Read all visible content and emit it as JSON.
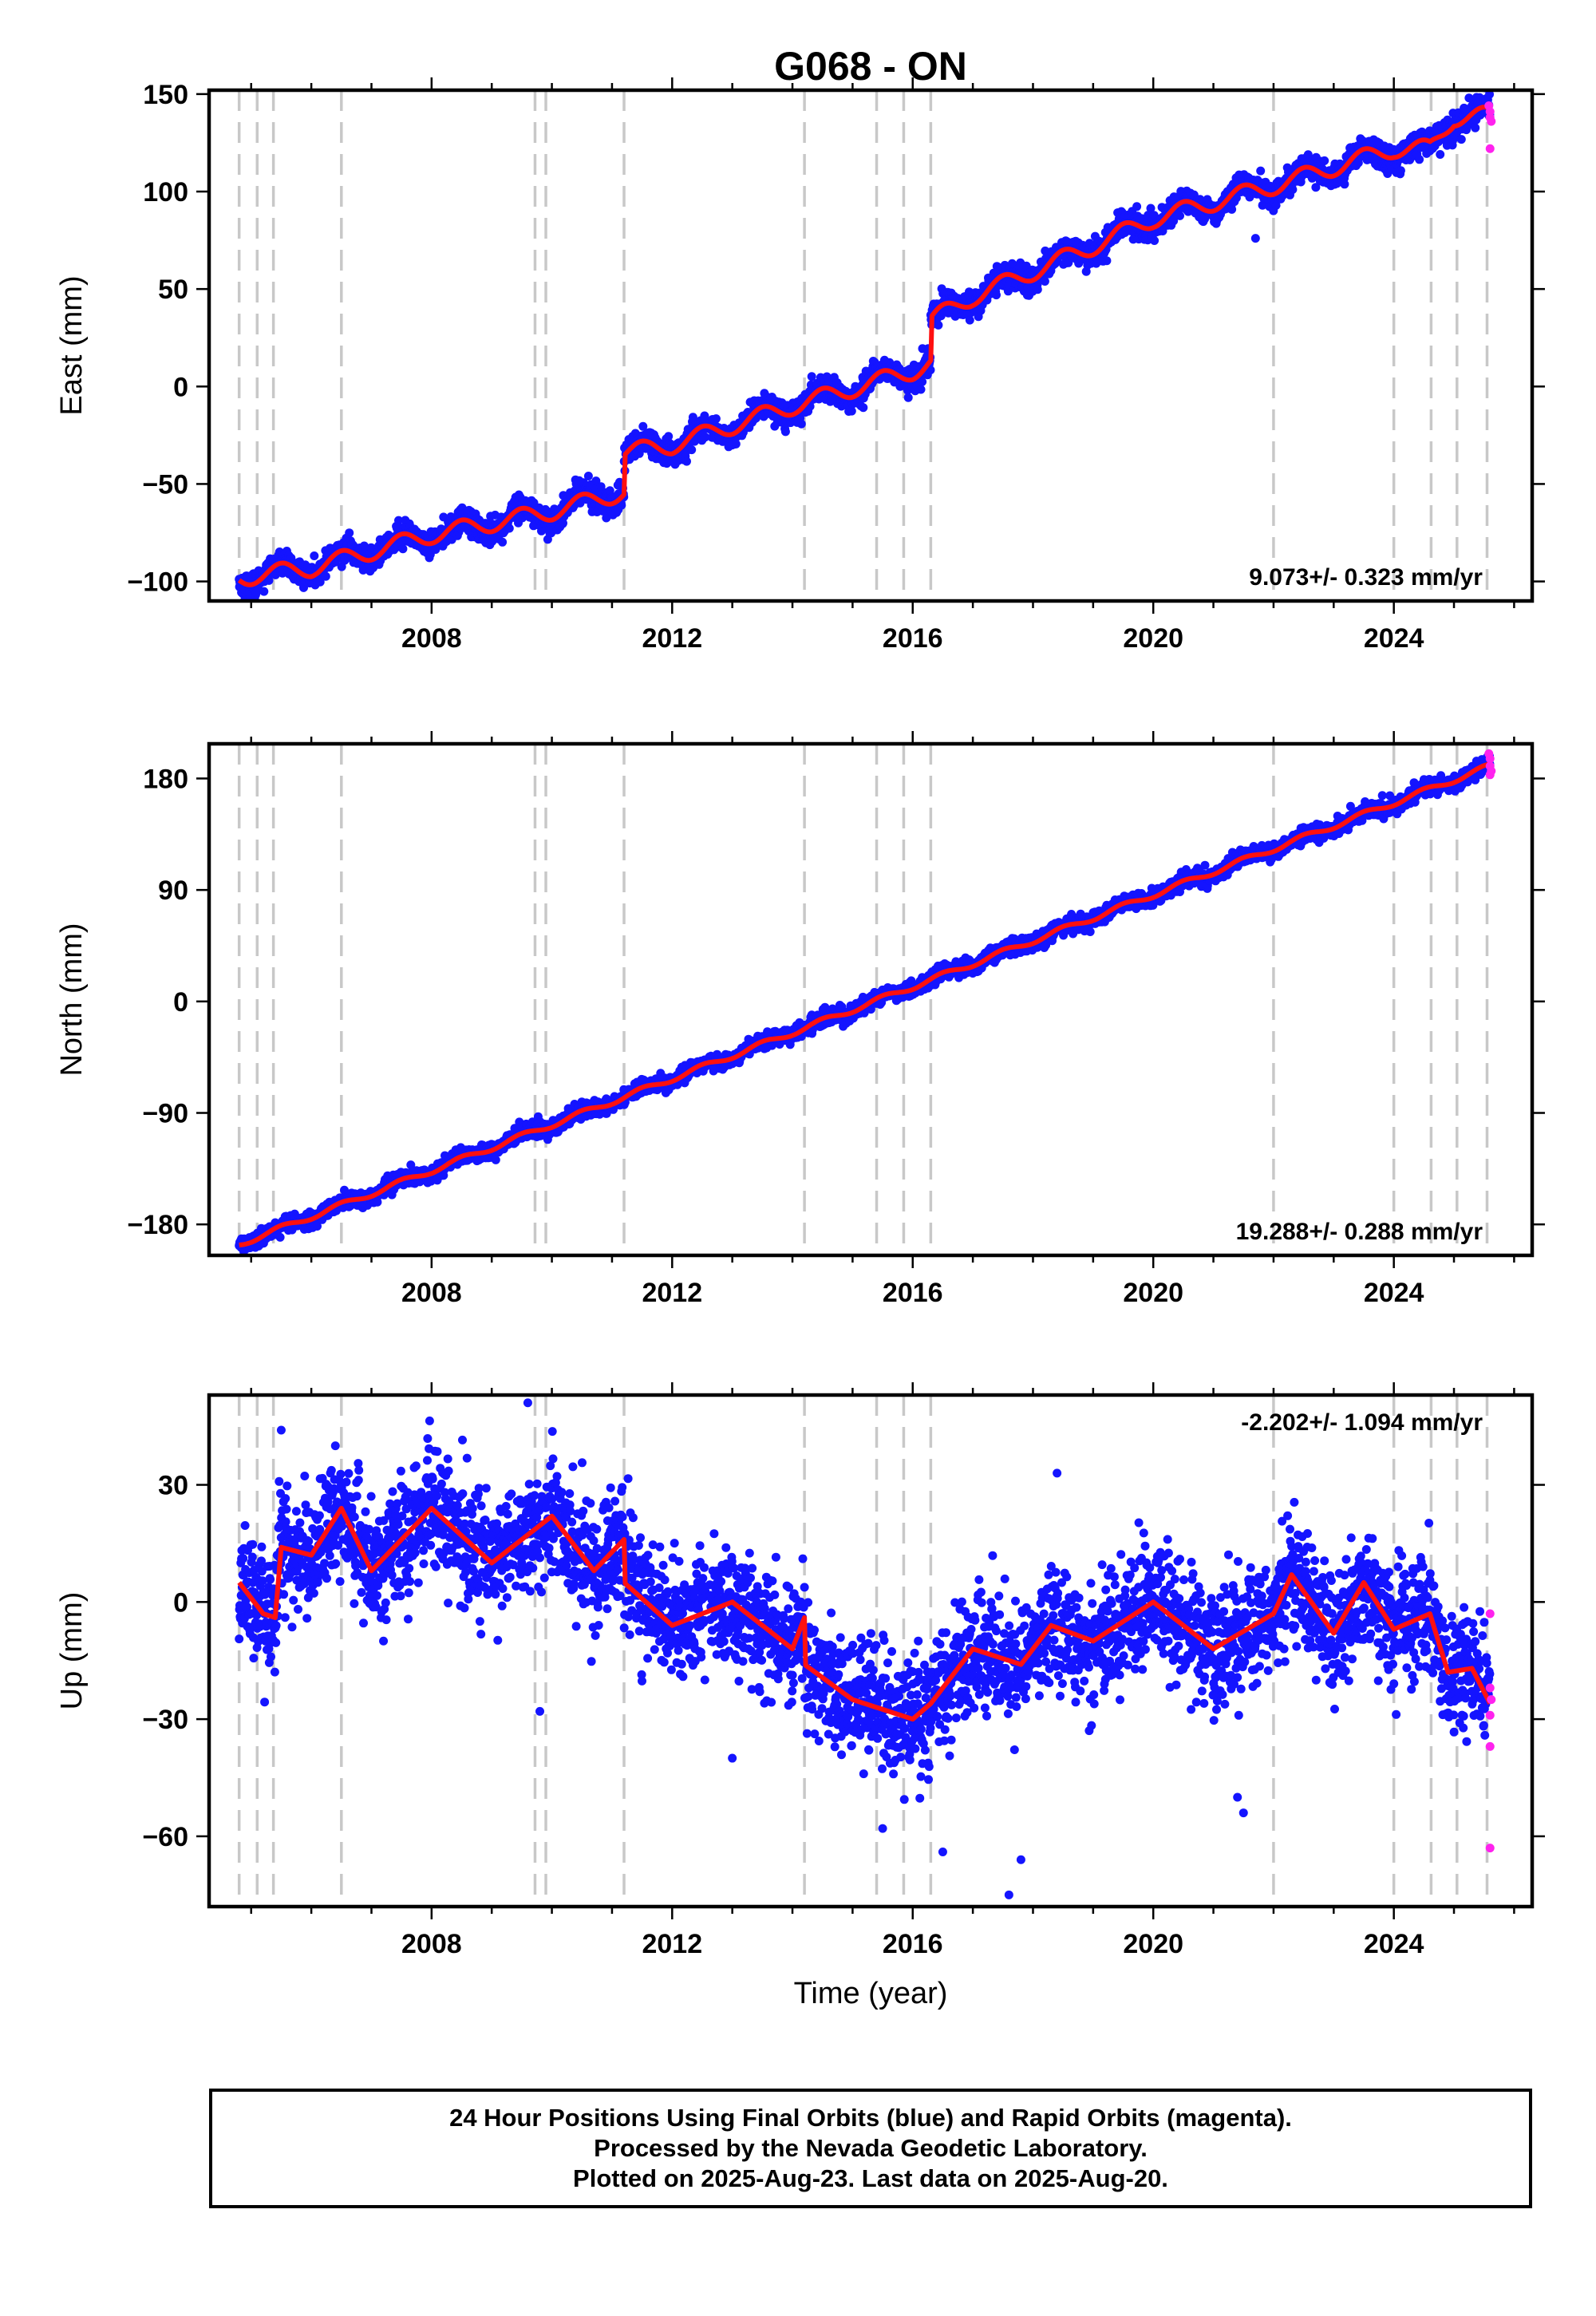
{
  "title": "G068 - ON",
  "x_axis_label": "Time (year)",
  "colors": {
    "final_orbits": "#1414ff",
    "rapid_orbits": "#ff22ee",
    "model": "#ff1010",
    "event_lines": "#c8c8c8"
  },
  "footer": {
    "line1": "24 Hour Positions Using Final Orbits (blue) and Rapid Orbits (magenta).",
    "line2": "Processed by the Nevada Geodetic Laboratory.",
    "line3": "Plotted on 2025-Aug-23. Last data on 2025-Aug-20."
  },
  "chart_data": [
    {
      "type": "scatter",
      "component": "East",
      "ylabel": "East (mm)",
      "xlim": [
        2004.3,
        2026.3
      ],
      "ylim": [
        -110,
        152
      ],
      "xticks": [
        2008,
        2012,
        2016,
        2020,
        2024
      ],
      "yticks": [
        -100,
        -50,
        0,
        50,
        100,
        150
      ],
      "rate_text": "9.073+/- 0.323 mm/yr",
      "rate_position": "bottom-right",
      "trend": {
        "t0": 2004.8,
        "y0": -98,
        "t1": 2025.6,
        "y1": 139
      },
      "offsets": [
        {
          "t": 2011.2,
          "dy": 10
        },
        {
          "t": 2016.3,
          "dy": 20
        }
      ],
      "seasonal_amplitude": 5,
      "noise_sd": 3.2,
      "curve_points": [
        [
          2004.8,
          -98
        ],
        [
          2006.0,
          -93
        ],
        [
          2008.0,
          -76
        ],
        [
          2010.0,
          -64
        ],
        [
          2011.2,
          -54
        ],
        [
          2011.2,
          -34
        ],
        [
          2012.0,
          -30
        ],
        [
          2014.0,
          -10
        ],
        [
          2016.0,
          8
        ],
        [
          2016.3,
          12
        ],
        [
          2016.3,
          34
        ],
        [
          2017.0,
          46
        ],
        [
          2019.0,
          72
        ],
        [
          2020.0,
          86
        ],
        [
          2022.0,
          103
        ],
        [
          2024.0,
          122
        ],
        [
          2024.6,
          122
        ],
        [
          2025.0,
          138
        ],
        [
          2025.6,
          139
        ]
      ],
      "outliers": [
        [
          2021.7,
          76
        ],
        [
          2025.25,
          148
        ]
      ],
      "rapid_points": [
        [
          2025.58,
          144
        ],
        [
          2025.6,
          141
        ],
        [
          2025.6,
          138
        ],
        [
          2025.6,
          122
        ],
        [
          2025.62,
          136
        ]
      ]
    },
    {
      "type": "scatter",
      "component": "North",
      "ylabel": "North (mm)",
      "xlim": [
        2004.3,
        2026.3
      ],
      "ylim": [
        -205,
        208
      ],
      "xticks": [
        2008,
        2012,
        2016,
        2020,
        2024
      ],
      "yticks": [
        -180,
        -90,
        0,
        90,
        180
      ],
      "rate_text": "19.288+/- 0.288 mm/yr",
      "rate_position": "bottom-right",
      "trend": {
        "t0": 2004.8,
        "y0": -196,
        "t1": 2025.6,
        "y1": 190
      },
      "offsets": [],
      "seasonal_amplitude": 2.5,
      "noise_sd": 3,
      "curve_points": [
        [
          2004.8,
          -196
        ],
        [
          2025.6,
          190
        ]
      ],
      "outliers": [],
      "rapid_points": [
        [
          2025.58,
          200
        ],
        [
          2025.6,
          196
        ],
        [
          2025.6,
          190
        ],
        [
          2025.62,
          186
        ],
        [
          2025.6,
          183
        ]
      ]
    },
    {
      "type": "scatter",
      "component": "Up",
      "ylabel": "Up (mm)",
      "xlim": [
        2004.3,
        2026.3
      ],
      "ylim": [
        -78,
        53
      ],
      "xticks": [
        2008,
        2012,
        2016,
        2020,
        2024
      ],
      "yticks": [
        -60,
        -30,
        0,
        30
      ],
      "rate_text": "-2.202+/- 1.094 mm/yr",
      "rate_position": "top-right",
      "curve_points": [
        [
          2004.8,
          5
        ],
        [
          2005.2,
          -3
        ],
        [
          2005.4,
          -4
        ],
        [
          2005.5,
          14
        ],
        [
          2006.0,
          12
        ],
        [
          2006.5,
          24
        ],
        [
          2007.0,
          8
        ],
        [
          2008.0,
          24
        ],
        [
          2009.0,
          10
        ],
        [
          2010.0,
          22
        ],
        [
          2010.7,
          8
        ],
        [
          2011.2,
          16
        ],
        [
          2011.2,
          5
        ],
        [
          2012.0,
          -6
        ],
        [
          2013.0,
          0
        ],
        [
          2014.0,
          -12
        ],
        [
          2014.2,
          -4
        ],
        [
          2014.2,
          -16
        ],
        [
          2015.0,
          -25
        ],
        [
          2016.0,
          -30
        ],
        [
          2016.3,
          -26
        ],
        [
          2017.0,
          -12
        ],
        [
          2017.8,
          -16
        ],
        [
          2018.3,
          -6
        ],
        [
          2019.0,
          -10
        ],
        [
          2020.0,
          0
        ],
        [
          2021.0,
          -12
        ],
        [
          2022.0,
          -3
        ],
        [
          2022.3,
          7
        ],
        [
          2023.0,
          -8
        ],
        [
          2023.5,
          5
        ],
        [
          2024.0,
          -7
        ],
        [
          2024.6,
          -3
        ],
        [
          2024.9,
          -18
        ],
        [
          2025.3,
          -17
        ],
        [
          2025.6,
          -26
        ]
      ],
      "noise_sd": 7.5,
      "outliers": [
        [
          2009.6,
          51
        ],
        [
          2005.5,
          44
        ],
        [
          2009.8,
          -28
        ],
        [
          2013.0,
          -40
        ],
        [
          2015.5,
          -58
        ],
        [
          2016.5,
          -64
        ],
        [
          2017.6,
          -75
        ],
        [
          2017.8,
          -66
        ],
        [
          2021.4,
          -50
        ],
        [
          2021.5,
          -54
        ],
        [
          2018.4,
          33
        ],
        [
          2006.4,
          40
        ],
        [
          2007.2,
          -10
        ],
        [
          2011.9,
          -12
        ]
      ],
      "rapid_points": [
        [
          2025.6,
          -3
        ],
        [
          2025.6,
          -22
        ],
        [
          2025.6,
          -29
        ],
        [
          2025.6,
          -37
        ],
        [
          2025.6,
          -63
        ],
        [
          2025.62,
          -25
        ]
      ]
    }
  ],
  "event_years": [
    2004.8,
    2005.1,
    2005.37,
    2006.5,
    2009.72,
    2009.9,
    2011.2,
    2014.2,
    2015.4,
    2015.85,
    2016.3,
    2022.0,
    2024.0,
    2024.62,
    2025.05,
    2025.55
  ]
}
